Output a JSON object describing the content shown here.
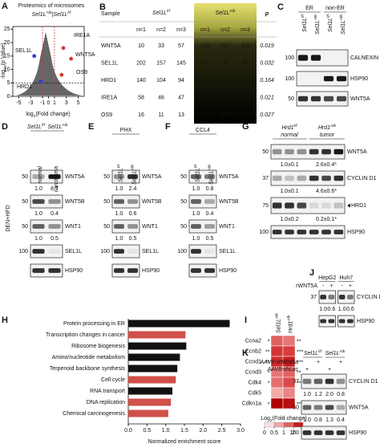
{
  "chart_data": [
    {
      "type": "scatter",
      "label": "A",
      "title": "Proteomics of microsomes",
      "subtitle": [
        {
          "t": "Sel1L"
        },
        {
          "sup": "Alb"
        },
        {
          "t": "|Sel1L"
        },
        {
          "sup": "f/f"
        }
      ],
      "xlabel": [
        {
          "t": "log"
        },
        {
          "sub": "2"
        },
        {
          "t": "(Fold change)"
        }
      ],
      "ylabel": [
        {
          "t": "-log"
        },
        {
          "sub": "10"
        },
        {
          "t": "(p Value)"
        }
      ],
      "xlim": [
        -6,
        6
      ],
      "xticks": [
        -5,
        -3,
        -1,
        0,
        1,
        3,
        5
      ],
      "ylim": [
        0,
        26
      ],
      "yticks": [
        0,
        5,
        10,
        15,
        20,
        25
      ],
      "cutoff_lines": {
        "x": [
          -1,
          1
        ],
        "y": [
          5
        ]
      },
      "points": [
        {
          "name": "SEL1L",
          "x": -2.4,
          "y": 15,
          "color": "#2b3fd6"
        },
        {
          "name": "HRD1",
          "x": -1.3,
          "y": 5.5,
          "color": "#2b3fd6"
        },
        {
          "name": "IRE1A",
          "x": 2.5,
          "y": 18,
          "color": "#d0392f"
        },
        {
          "name": "WNT5A",
          "x": 3.8,
          "y": 14,
          "color": "#d0392f"
        },
        {
          "name": "OS9",
          "x": 2.2,
          "y": 8,
          "color": "#d0392f"
        }
      ]
    },
    {
      "type": "bar",
      "label": "H",
      "categories": [
        "Protein processing in ER",
        "Transcription changes in cancer",
        "Ribosome biogenesis",
        "Amino/nucleotide metabolism",
        "Terpenoid backbone synthesis",
        "Cell cycle",
        "RNA transport",
        "DNA replication",
        "Chemical carcinogenesis"
      ],
      "values": [
        2.71,
        1.53,
        1.55,
        1.38,
        1.31,
        1.27,
        1.18,
        1.14,
        1.07
      ],
      "colors": [
        "#111111",
        "#d0504a",
        "#111111",
        "#111111",
        "#111111",
        "#d0504a",
        "#111111",
        "#d0504a",
        "#d0504a"
      ],
      "xlabel": "Normalized enrichment score",
      "xlim": [
        0,
        3
      ],
      "xticks": [
        {
          "value": 0,
          "label": "0.0"
        },
        {
          "value": 0.5,
          "label": "0.5"
        },
        {
          "value": 1,
          "label": "1.0"
        },
        {
          "value": 1.5,
          "label": "1.5"
        },
        {
          "value": 2,
          "label": "2.0"
        },
        {
          "value": 2.5,
          "label": "2.5"
        },
        {
          "value": 3,
          "label": "3.0"
        }
      ]
    },
    {
      "type": "heatmap",
      "label": "I",
      "rows": [
        "Ccna2",
        "Ccnb2",
        "Ccnd1",
        "Ccnd3",
        "Cdk4",
        "Cdk5",
        "Cdkn1a"
      ],
      "columns": [
        [
          {
            "t": "Sel1L"
          },
          {
            "sup": "Alb"
          }
        ],
        [
          {
            "t": "Hrd1"
          },
          {
            "sup": "Alb"
          }
        ]
      ],
      "values": [
        [
          1.5,
          1.2
        ],
        [
          2.2,
          2
        ],
        [
          2.5,
          3
        ],
        [
          1.2,
          1.5
        ],
        [
          1.3,
          1.8
        ],
        [
          0.7,
          1
        ],
        [
          4,
          3.5
        ]
      ],
      "stars": [
        [
          "*",
          "**"
        ],
        [
          "**",
          "***"
        ],
        [
          "**",
          "***"
        ],
        [
          "*",
          "**"
        ],
        [
          "*",
          "**"
        ],
        [
          null,
          null
        ],
        [
          "*",
          "***"
        ]
      ],
      "colorbar": {
        "title": [
          {
            "t": "Log"
          },
          {
            "sub": "2"
          },
          {
            "t": "(Fold change)"
          }
        ],
        "ticks": [
          0,
          {
            "value": 0.5,
            "label": "0.5"
          },
          1,
          2,
          4
        ],
        "colors": [
          "#ffffff",
          "#f6c4c4",
          "#ea8585",
          "#d83c3c",
          "#b00000"
        ]
      }
    }
  ],
  "B": {
    "label": "B",
    "header": {
      "sample": "Sample",
      "groups": [
        [
          {
            "t": "Sel1L"
          },
          {
            "sup": "f/f"
          }
        ],
        [
          {
            "t": "Sel1L"
          },
          {
            "sup": "Alb"
          }
        ]
      ],
      "p": "p"
    },
    "n": [
      "n=1",
      "n=2",
      "n=3",
      "n=1",
      "n=2",
      "n=3"
    ],
    "rows": [
      {
        "name": "WNT5A",
        "values": [
          "10",
          "33",
          "57",
          "155",
          "227",
          "118"
        ],
        "p": "0.019",
        "color": "#d0392f"
      },
      {
        "name": "SEL1L",
        "values": [
          "202",
          "157",
          "145",
          "47",
          "29",
          "40"
        ],
        "p": "0.032",
        "color": "#2b3fd6"
      },
      {
        "name": "HRD1",
        "values": [
          "140",
          "104",
          "94",
          "79",
          "90",
          "94"
        ],
        "p": "0.164",
        "color": "#2b3fd6"
      },
      {
        "name": "IRE1A",
        "values": [
          "58",
          "46",
          "47",
          "131",
          "159",
          "160"
        ],
        "p": "0.021",
        "color": "#d0392f"
      },
      {
        "name": "OS9",
        "values": [
          "16",
          "11",
          "13",
          "141",
          "289",
          "120"
        ],
        "p": "0.027",
        "color": "#d0392f"
      }
    ]
  },
  "C": {
    "label": "C",
    "groups": [
      "ER",
      "non-ER"
    ],
    "lanes": [
      [
        {
          "t": "Sel1L"
        },
        {
          "sup": "f/f"
        }
      ],
      [
        {
          "t": "Sel1L"
        },
        {
          "sup": "Alb"
        }
      ],
      [
        {
          "t": "Sel1L"
        },
        {
          "sup": "f/f"
        }
      ],
      [
        {
          "t": "Sel1L"
        },
        {
          "sup": "Alb"
        }
      ]
    ],
    "rows": [
      {
        "marker": "100",
        "name": "CALNEXIN"
      },
      {
        "marker": "100",
        "name": "HSP90"
      },
      {
        "marker": "50",
        "name": "WNT5A"
      }
    ]
  },
  "D": {
    "label": "D",
    "lanes": [
      [
        {
          "t": "Sel1L"
        },
        {
          "sup": "f/f"
        }
      ],
      [
        {
          "t": "Sel1L"
        },
        {
          "sup": "Alb"
        }
      ]
    ],
    "conditions": [
      "normal",
      "carcinoma"
    ],
    "side": "DEN+HFD",
    "rows": [
      {
        "marker": "50",
        "name": "WNT5A",
        "quant": [
          "1.0",
          "8.7"
        ]
      },
      {
        "marker": "50",
        "name": "WNT5B",
        "quant": [
          "1.0",
          "0.4"
        ]
      },
      {
        "marker": "50",
        "name": "WNT1",
        "quant": [
          "1.0",
          "0.5"
        ]
      },
      {
        "marker": "100",
        "name": "SEL1L"
      },
      {
        "name": "HSP90"
      }
    ]
  },
  "E": {
    "label": "E",
    "treatment": "PHX",
    "lanes": [
      [
        {
          "t": "Sel1L"
        },
        {
          "sup": "f/f"
        }
      ],
      [
        {
          "t": "Sel1L"
        },
        {
          "sup": "Alb"
        }
      ]
    ],
    "rows": [
      {
        "marker": "50",
        "name": "WNT5A",
        "quant": [
          "1.0",
          "2.4"
        ]
      },
      {
        "marker": "50",
        "name": "WNT5B",
        "quant": [
          "1.0",
          "0.6"
        ]
      },
      {
        "marker": "50",
        "name": "WNT1",
        "quant": [
          "1.0",
          "0.5"
        ]
      },
      {
        "marker": "100",
        "name": "SEL1L"
      },
      {
        "name": "HSP90"
      }
    ]
  },
  "F": {
    "label": "F",
    "treatment": "CCL4",
    "lanes": [
      [
        {
          "t": "Sel1L"
        },
        {
          "sup": "f/f"
        }
      ],
      [
        {
          "t": "Sel1L"
        },
        {
          "sup": "Alb"
        }
      ]
    ],
    "rows": [
      {
        "marker": "50",
        "name": "WNT5A",
        "quant": [
          "1.0",
          "0.8"
        ]
      },
      {
        "marker": "50",
        "name": "WNT5B",
        "quant": [
          "1.0",
          "0.4"
        ]
      },
      {
        "marker": "50",
        "name": "WNT1",
        "quant": [
          "1.0",
          "0.5"
        ]
      },
      {
        "marker": "100",
        "name": "SEL1L"
      },
      {
        "name": "HSP90"
      }
    ]
  },
  "G": {
    "label": "G",
    "lanes": [
      [
        {
          "t": "Hrd1"
        },
        {
          "sup": "f/f"
        }
      ],
      [
        {
          "t": "Hrd1"
        },
        {
          "sup": "Alb"
        }
      ]
    ],
    "conditions": [
      "normal",
      "tumor"
    ],
    "rows": [
      {
        "marker": "50",
        "name": "WNT5A",
        "quant": [
          "1.0±0.1",
          "2.6±0.4*"
        ]
      },
      {
        "marker": "37",
        "name": "CYCLIN D1",
        "quant": [
          "1.0±0.1",
          "4.6±0.6*"
        ]
      },
      {
        "marker": "75",
        "name": "HRD1",
        "quant": [
          "1.0±0.2",
          "0.2±0.1*"
        ]
      },
      {
        "marker": "100",
        "name": "HSP90"
      }
    ]
  },
  "J": {
    "label": "J",
    "treatment": "rWNT5A",
    "cells": [
      "HepG2",
      "Huh7"
    ],
    "signs": [
      "-",
      "+",
      "-",
      "+"
    ],
    "rows": [
      {
        "marker": "37",
        "name": "CYCLIN D1",
        "quant": [
          "1.0",
          "0.6",
          "1.0",
          "0.6"
        ]
      },
      {
        "name": "HSP90"
      }
    ]
  },
  "K": {
    "label": "K",
    "groups": [
      [
        {
          "t": "Sel1L"
        },
        {
          "sup": "f/f"
        }
      ],
      [
        {
          "t": "Sel1L"
        },
        {
          "sup": "Alb"
        }
      ]
    ],
    "treatments": [
      {
        "name": "AAV8-shWnt5a",
        "signs": [
          null,
          "+",
          null,
          "+"
        ]
      },
      {
        "name": "AAV8-shLuc",
        "signs": [
          "+",
          null,
          "+",
          null
        ]
      }
    ],
    "rows": [
      {
        "marker": "37",
        "name": "CYCLIN D1",
        "quant": [
          "1.0",
          "1.2",
          "2.0",
          "0.8"
        ]
      },
      {
        "marker": "50",
        "name": "WNT5A",
        "quant": [
          "1.0",
          "0.8",
          "1.3",
          "0.4"
        ]
      },
      {
        "marker": "100",
        "name": "HSP90"
      }
    ]
  }
}
